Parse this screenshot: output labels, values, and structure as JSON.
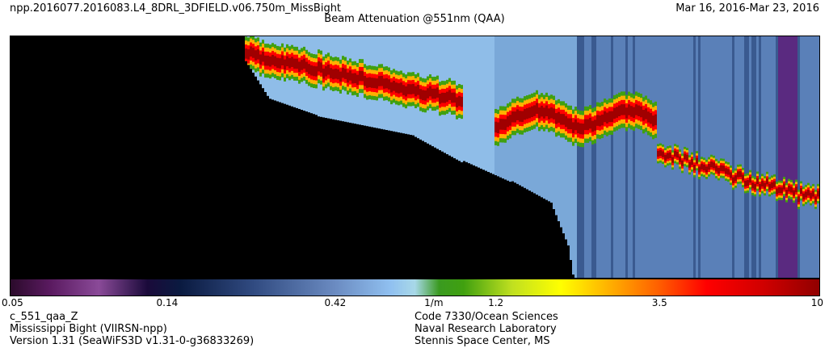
{
  "header": {
    "filename": "npp.2016077.2016083.L4_8DRL_3DFIELD.v06.750m_MissBight",
    "date_range": "Mar 16, 2016-Mar 23, 2016",
    "title": "Beam Attenuation @551nm (QAA)"
  },
  "chart_data": {
    "type": "heatmap",
    "title": "Beam Attenuation @551nm (QAA)",
    "xlabel": "",
    "ylabel": "",
    "colorbar": {
      "scale": "log",
      "range": [
        0.05,
        10
      ],
      "unit": "1/m",
      "ticks": [
        {
          "label": "0.05",
          "value": 0.05
        },
        {
          "label": "0.14",
          "value": 0.14
        },
        {
          "label": "0.42",
          "value": 0.42
        },
        {
          "label": "1/m",
          "value": 0.8
        },
        {
          "label": "1.2",
          "value": 1.2
        },
        {
          "label": "3.5",
          "value": 3.5
        },
        {
          "label": "10",
          "value": 10
        }
      ]
    },
    "background_color": "#000000"
  },
  "footer": {
    "left": [
      "c_551_qaa_Z",
      "Mississippi Bight (VIIRSN-npp)",
      "Version 1.31 (SeaWiFS3D v1.31-0-g36833269)"
    ],
    "right": [
      "Code 7330/Ocean Sciences",
      "Naval Research Laboratory",
      "Stennis Space Center, MS"
    ]
  }
}
